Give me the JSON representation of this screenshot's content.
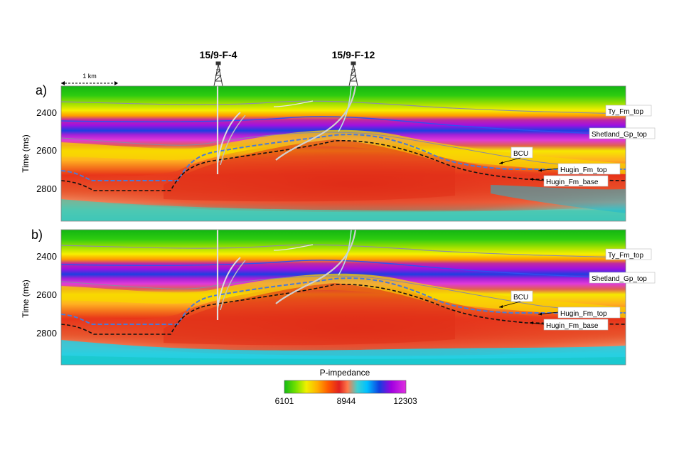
{
  "wells": [
    "15/9-F-4",
    "15/9-F-12"
  ],
  "scale_bar": "1 km",
  "panels": [
    {
      "label": "a)",
      "y_axis_title": "Time (ms)",
      "y_ticks": [
        "2400",
        "2600",
        "2800"
      ],
      "horizon_labels": [
        "Ty_Fm_top",
        "Shetland_Gp_top",
        "BCU",
        "Hugin_Fm_top",
        "Hugin_Fm_base"
      ]
    },
    {
      "label": "b)",
      "y_axis_title": "Time (ms)",
      "y_ticks": [
        "2400",
        "2600",
        "2800"
      ],
      "horizon_labels": [
        "Ty_Fm_top",
        "Shetland_Gp_top",
        "BCU",
        "Hugin_Fm_top",
        "Hugin_Fm_base"
      ]
    }
  ],
  "colorbar": {
    "title": "P-impedance",
    "ticks": [
      "6101",
      "8944",
      "12303"
    ],
    "colors": [
      "#14b914",
      "#6fe000",
      "#f0f000",
      "#ffb000",
      "#ff5a00",
      "#e02020",
      "#ff7a4a",
      "#40d0d0",
      "#00c0ff",
      "#1040e0",
      "#a000e0",
      "#e030e0"
    ]
  }
}
